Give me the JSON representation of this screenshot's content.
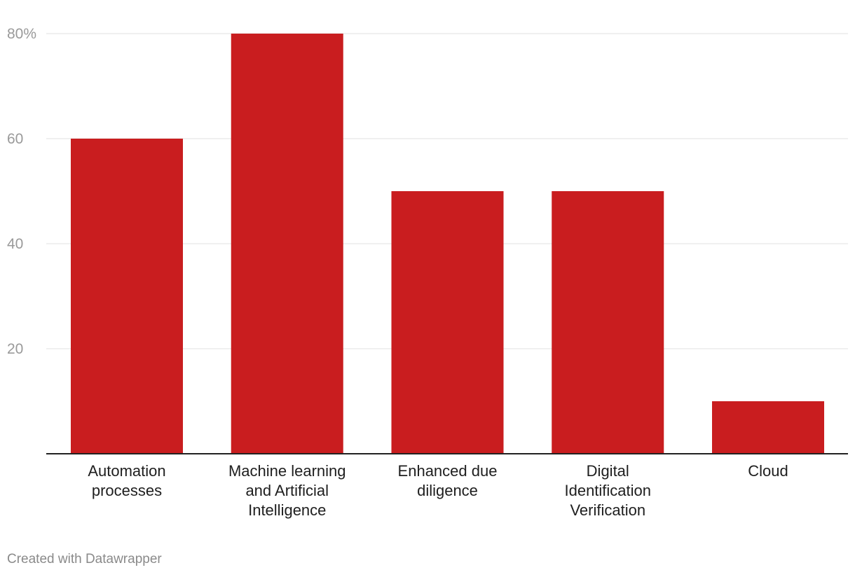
{
  "chart_data": {
    "type": "bar",
    "categories": [
      [
        "Automation",
        "processes"
      ],
      [
        "Machine learning",
        "and Artificial",
        "Intelligence"
      ],
      [
        "Enhanced due",
        "diligence"
      ],
      [
        "Digital",
        "Identification",
        "Verification"
      ],
      [
        "Cloud"
      ]
    ],
    "values": [
      60,
      80,
      50,
      50,
      10
    ],
    "ylim": [
      0,
      80
    ],
    "yticks": [
      {
        "value": 20,
        "label": "20"
      },
      {
        "value": 40,
        "label": "40"
      },
      {
        "value": 60,
        "label": "60"
      },
      {
        "value": 80,
        "label": "80%"
      }
    ],
    "grid": true,
    "bar_color": "#c91d1f",
    "grid_color": "#e2e2e2",
    "axis_color": "#222222",
    "title": "",
    "xlabel": "",
    "ylabel": ""
  },
  "footer": {
    "credit": "Created with Datawrapper"
  }
}
